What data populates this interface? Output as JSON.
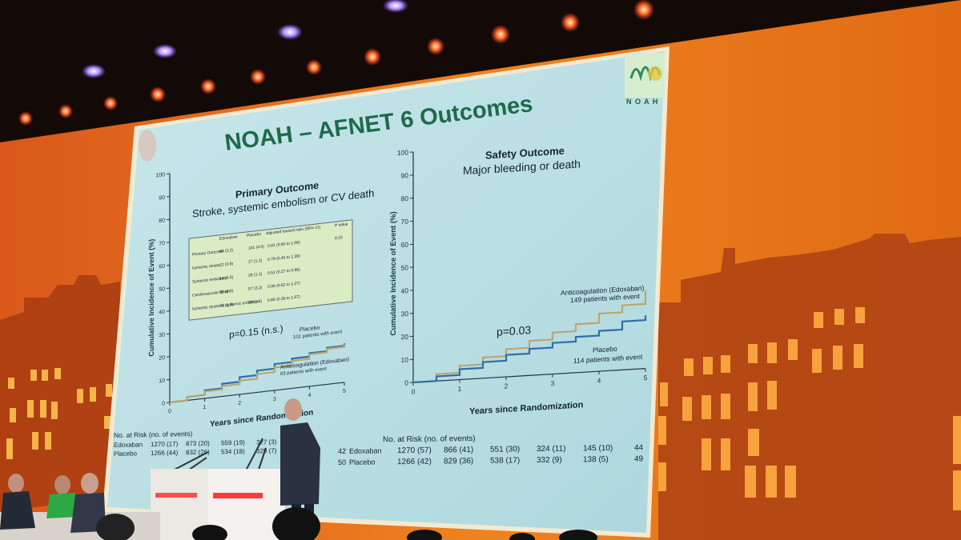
{
  "slide": {
    "title": "NOAH – AFNET 6  Outcomes",
    "logo_text": "N O A H",
    "colors": {
      "slide_bg": "#b9e0e6",
      "edoxaban_line": "#b9a771",
      "placebo_line": "#2f6ea8",
      "stage_orange": "#e8701c",
      "podium_red": "#ff3a3a"
    }
  },
  "primary": {
    "heading": "Primary Outcome",
    "subheading": "Stroke, systemic embolism or CV death",
    "ylabel": "Cumulative Incidence of Event (%)",
    "xlabel": "Years since Randomization",
    "p_value": "p=0.15 (n.s.)",
    "placebo_label": "Placebo",
    "placebo_events": "101 patients with event",
    "edox_label": "Anticoagulation (Edoxaban)",
    "edox_events": "83 patients with event",
    "table": {
      "headers": [
        "Edoxaban",
        "Placebo",
        "Adjusted hazard ratio (95% CI)",
        "P value"
      ],
      "rows": [
        {
          "label": "Primary Outcome",
          "edox": "83 (3.2)",
          "placebo": "101 (4.0)",
          "hr": "0.81 (0.60 to 1.08)",
          "p": "0.15"
        },
        {
          "label": "Ischemic stroke",
          "edox": "22 (0.8)",
          "placebo": "27 (1.1)",
          "hr": "0.79 (0.45 to 1.39)",
          "p": ""
        },
        {
          "label": "Systemic embolism",
          "edox": "14 (0.5)",
          "placebo": "28 (1.1)",
          "hr": "0.51 (0.27 to 0.96)",
          "p": ""
        },
        {
          "label": "Cardiovascular death",
          "edox": "52 (2.0)",
          "placebo": "57 (2.2)",
          "hr": "0.96 (0.62 to 1.27)",
          "p": ""
        },
        {
          "label": "Ischemic stroke or systemic embolism",
          "edox": "35 (1.3)",
          "placebo": "39 (1.5)",
          "hr": "0.88 (0.39 to 1.57)",
          "p": ""
        }
      ]
    },
    "at_risk_title": "No. at Risk (no. of events)",
    "at_risk_rows": [
      {
        "label": "Edoxaban",
        "values": [
          "1270 (17)",
          "873 (20)",
          "559 (19)",
          "327 (3)"
        ]
      },
      {
        "label": "Placebo",
        "values": [
          "1266 (44)",
          "832 (26)",
          "534 (18)",
          "329 (7)"
        ]
      }
    ]
  },
  "safety": {
    "heading": "Safety Outcome",
    "subheading": "Major bleeding or death",
    "ylabel": "Cumulative Incidence of Event (%)",
    "xlabel": "Years since Randomization",
    "p_value": "p=0.03",
    "edox_label": "Anticoagulation (Edoxaban)",
    "edox_events": "149 patients with event",
    "placebo_label": "Placebo",
    "placebo_events": "114 patients with event",
    "at_risk_title": "No. at Risk (no. of events)",
    "at_risk_rows": [
      {
        "prefix": "42",
        "label": "Edoxaban",
        "values": [
          "1270 (57)",
          "866 (41)",
          "551 (30)",
          "324 (11)",
          "145 (10)"
        ],
        "suffix": "44"
      },
      {
        "prefix": "50",
        "label": "Placebo",
        "values": [
          "1266 (42)",
          "829 (36)",
          "538 (17)",
          "332 (9)",
          "138 (5)"
        ],
        "suffix": "49"
      }
    ]
  },
  "chart_data": [
    {
      "type": "line",
      "title": "Primary Outcome",
      "subtitle": "Stroke, systemic embolism or CV death",
      "xlabel": "Years since Randomization",
      "ylabel": "Cumulative Incidence of Event (%)",
      "xlim": [
        0,
        5
      ],
      "ylim": [
        0,
        100
      ],
      "xticks": [
        0,
        1,
        2,
        3,
        4,
        5
      ],
      "yticks": [
        0,
        10,
        20,
        30,
        40,
        50,
        60,
        70,
        80,
        90,
        100
      ],
      "series": [
        {
          "name": "Placebo",
          "color": "#2f6ea8",
          "x": [
            0,
            0.5,
            1,
            1.5,
            2,
            2.5,
            3,
            3.5,
            4,
            4.5,
            5
          ],
          "y": [
            0,
            1.5,
            3.5,
            5.5,
            7.5,
            9.5,
            11.5,
            13,
            14.5,
            16,
            17
          ]
        },
        {
          "name": "Anticoagulation (Edoxaban)",
          "color": "#b9a771",
          "x": [
            0,
            0.5,
            1,
            1.5,
            2,
            2.5,
            3,
            3.5,
            4,
            4.5,
            5
          ],
          "y": [
            0,
            1.5,
            3,
            4.5,
            6,
            8,
            10,
            12,
            14,
            15.5,
            16.5
          ]
        }
      ]
    },
    {
      "type": "line",
      "title": "Safety Outcome",
      "subtitle": "Major bleeding or death",
      "xlabel": "Years since Randomization",
      "ylabel": "Cumulative Incidence of Event (%)",
      "xlim": [
        0,
        5
      ],
      "ylim": [
        0,
        100
      ],
      "xticks": [
        0,
        1,
        2,
        3,
        4,
        5
      ],
      "yticks": [
        0,
        10,
        20,
        30,
        40,
        50,
        60,
        70,
        80,
        90,
        100
      ],
      "series": [
        {
          "name": "Anticoagulation (Edoxaban)",
          "color": "#b9a771",
          "x": [
            0,
            0.5,
            1,
            1.5,
            2,
            2.5,
            3,
            3.5,
            4,
            4.5,
            5
          ],
          "y": [
            0,
            3,
            6,
            9,
            12,
            15,
            18,
            21,
            25,
            28,
            34
          ]
        },
        {
          "name": "Placebo",
          "color": "#2f6ea8",
          "x": [
            0,
            0.5,
            1,
            1.5,
            2,
            2.5,
            3,
            3.5,
            4,
            4.5,
            5
          ],
          "y": [
            0,
            2,
            4.5,
            7,
            9.5,
            11.5,
            13.5,
            15.5,
            17.5,
            21,
            23
          ]
        }
      ]
    }
  ]
}
